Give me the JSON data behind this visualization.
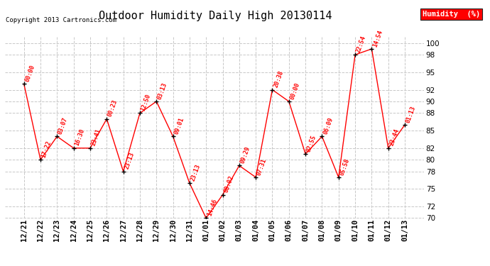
{
  "title": "Outdoor Humidity Daily High 20130114",
  "copyright": "Copyright 2013 Cartronics.com",
  "legend_label": "Humidity  (%)",
  "x_labels": [
    "12/21",
    "12/22",
    "12/23",
    "12/24",
    "12/25",
    "12/26",
    "12/27",
    "12/28",
    "12/29",
    "12/30",
    "12/31",
    "01/01",
    "01/02",
    "01/03",
    "01/04",
    "01/05",
    "01/06",
    "01/07",
    "01/08",
    "01/09",
    "01/10",
    "01/11",
    "01/12",
    "01/13"
  ],
  "y_values": [
    93,
    80,
    84,
    82,
    82,
    87,
    78,
    88,
    90,
    84,
    76,
    70,
    74,
    79,
    77,
    92,
    90,
    81,
    84,
    77,
    98,
    99,
    82,
    86
  ],
  "time_labels": [
    "00:00",
    "17:22",
    "03:07",
    "16:30",
    "23:41",
    "00:23",
    "23:13",
    "12:50",
    "03:13",
    "09:01",
    "23:13",
    "14:46",
    "08:02",
    "09:29",
    "07:31",
    "20:38",
    "00:00",
    "02:55",
    "06:09",
    "05:58",
    "22:54",
    "14:54",
    "23:44",
    "01:13"
  ],
  "ylim_min": 70,
  "ylim_max": 101,
  "yticks": [
    70,
    72,
    75,
    78,
    80,
    82,
    85,
    88,
    90,
    92,
    95,
    98,
    100
  ],
  "line_color": "#ff0000",
  "marker_color": "#000000",
  "label_color": "#ff0000",
  "bg_color": "#ffffff",
  "grid_color": "#c8c8c8",
  "title_fontsize": 11,
  "label_fontsize": 6,
  "tick_fontsize": 7.5,
  "legend_bg": "#ff0000",
  "legend_fg": "#ffffff"
}
